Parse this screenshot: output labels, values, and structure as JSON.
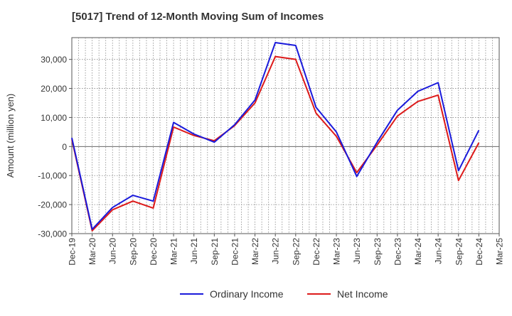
{
  "chart_data": {
    "type": "line",
    "title": "[5017]  Trend of 12-Month Moving Sum of Incomes",
    "xlabel": "",
    "ylabel": "Amount (million yen)",
    "ylim": [
      -30000,
      37500
    ],
    "yticks": [
      -30000,
      -20000,
      -10000,
      0,
      10000,
      20000,
      30000
    ],
    "ytick_labels": [
      "-30,000",
      "-20,000",
      "-10,000",
      "0",
      "10,000",
      "20,000",
      "30,000"
    ],
    "categories": [
      "Dec-19",
      "Mar-20",
      "Jun-20",
      "Sep-20",
      "Dec-20",
      "Mar-21",
      "Jun-21",
      "Sep-21",
      "Dec-21",
      "Mar-22",
      "Jun-22",
      "Sep-22",
      "Dec-22",
      "Mar-23",
      "Jun-23",
      "Sep-23",
      "Dec-23",
      "Mar-24",
      "Jun-24",
      "Sep-24",
      "Dec-24",
      "Mar-25"
    ],
    "grid": true,
    "legend_position": "bottom-center",
    "series": [
      {
        "name": "Ordinary Income",
        "color": "#1a1adb",
        "values": [
          3000,
          -28500,
          -21000,
          -16800,
          -18800,
          8300,
          4300,
          1500,
          7500,
          16000,
          35800,
          34800,
          13500,
          5000,
          -10300,
          1500,
          12500,
          19000,
          22000,
          -8300,
          5600,
          null
        ]
      },
      {
        "name": "Net Income",
        "color": "#dd1a1a",
        "values": [
          2500,
          -29000,
          -21800,
          -18800,
          -21200,
          6700,
          3800,
          2000,
          7200,
          15000,
          31000,
          30000,
          11500,
          3500,
          -9000,
          500,
          10500,
          15500,
          17700,
          -11700,
          1300,
          null
        ]
      }
    ]
  }
}
